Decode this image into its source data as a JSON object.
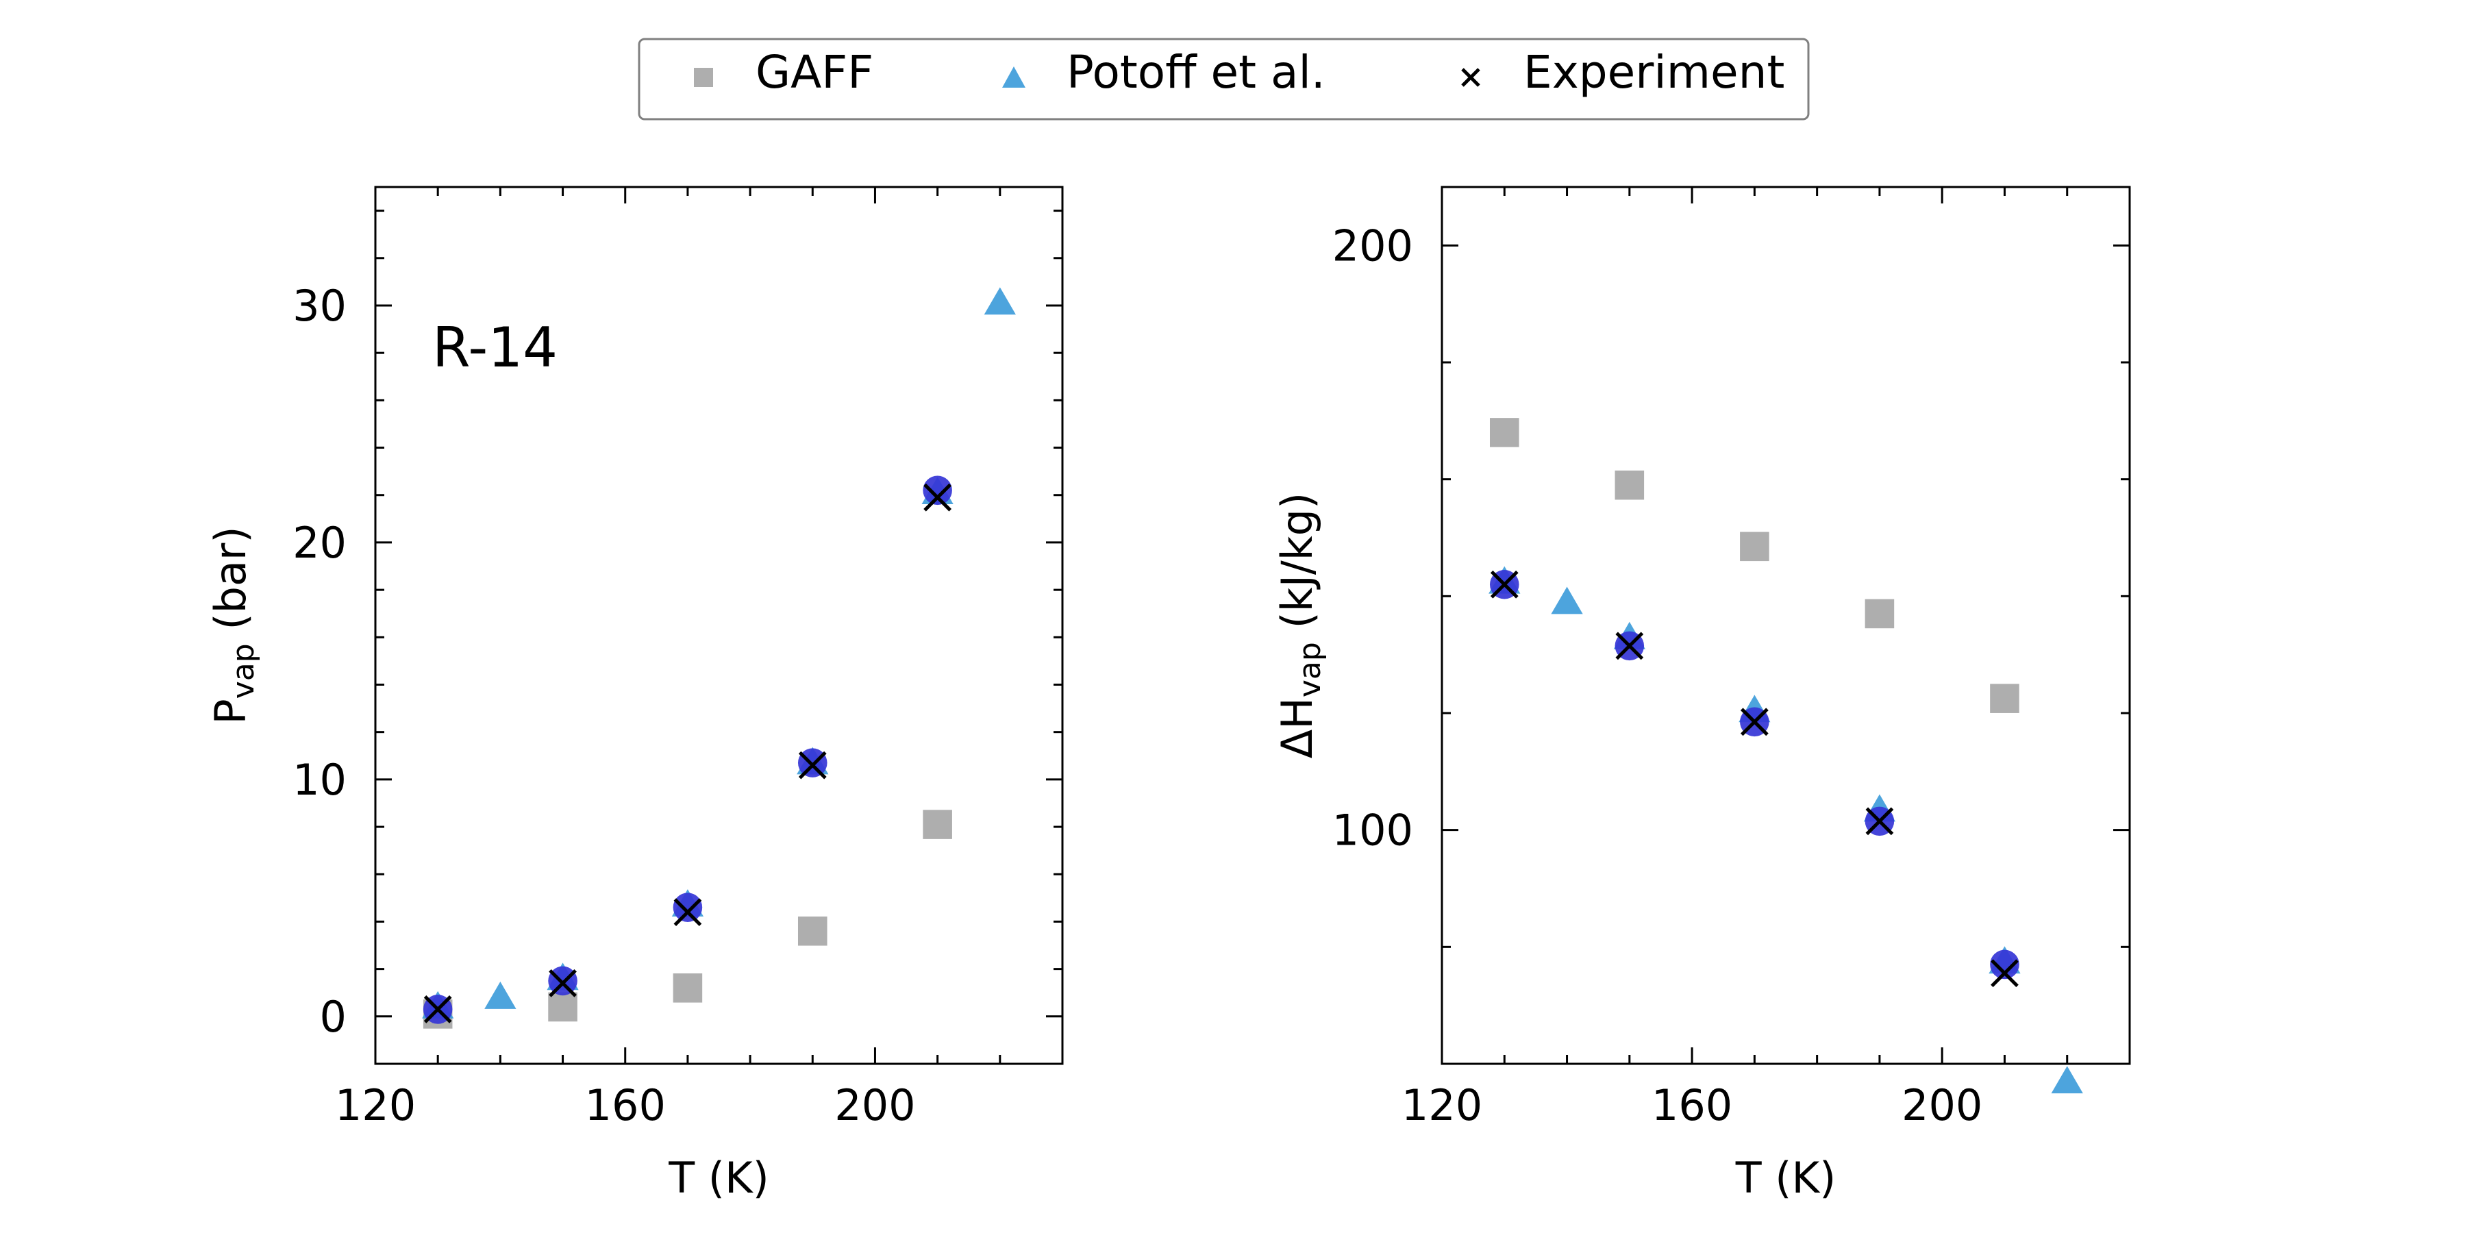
{
  "legend": {
    "items": [
      {
        "label": "GAFF",
        "marker": "square",
        "color": "#a0a0a0"
      },
      {
        "label": "Potoff et al.",
        "marker": "triangle",
        "color": "#3a9ad9"
      },
      {
        "label": "Experiment",
        "marker": "x",
        "color": "#000000"
      }
    ]
  },
  "chart_data": [
    {
      "type": "scatter",
      "annotation": "R-14",
      "xlabel": "T (K)",
      "ylabel_main": "P",
      "ylabel_sub": "vap",
      "ylabel_tail": " (bar)",
      "xlim": [
        120,
        230
      ],
      "ylim": [
        -2,
        35
      ],
      "xticks": [
        120,
        160,
        200
      ],
      "yticks": [
        0,
        10,
        20,
        30
      ],
      "grid": false,
      "series": [
        {
          "name": "GAFF",
          "marker": "square",
          "color": "#a0a0a0",
          "x": [
            130,
            150,
            170,
            190,
            210
          ],
          "y": [
            0.1,
            0.4,
            1.2,
            3.6,
            8.1
          ]
        },
        {
          "name": "Potoff et al.",
          "marker": "triangle",
          "color": "#3a9ad9",
          "x": [
            130,
            140,
            150,
            170,
            190,
            210,
            220
          ],
          "y": [
            0.3,
            0.7,
            1.5,
            4.6,
            10.6,
            22.0,
            30.0
          ]
        },
        {
          "marker": "circle",
          "color": "#3535d6",
          "x": [
            130,
            150,
            170,
            190,
            210
          ],
          "y": [
            0.3,
            1.5,
            4.6,
            10.7,
            22.2
          ]
        },
        {
          "name": "Experiment",
          "marker": "x",
          "color": "#000000",
          "x": [
            130,
            150,
            170,
            190,
            210
          ],
          "y": [
            0.3,
            1.4,
            4.4,
            10.6,
            21.9
          ]
        }
      ]
    },
    {
      "type": "scatter",
      "xlabel": "T (K)",
      "ylabel_main": "ΔH",
      "ylabel_sub": "vap",
      "ylabel_tail": " (kJ/kg)",
      "xlim": [
        120,
        230
      ],
      "ylim": [
        60,
        210
      ],
      "xticks": [
        120,
        160,
        200
      ],
      "yticks": [
        100,
        200
      ],
      "grid": false,
      "series": [
        {
          "name": "GAFF",
          "marker": "square",
          "color": "#a0a0a0",
          "x": [
            130,
            150,
            170,
            190,
            210
          ],
          "y": [
            168,
            159,
            148.5,
            137,
            122.5
          ]
        },
        {
          "name": "Potoff et al.",
          "marker": "triangle",
          "color": "#3a9ad9",
          "x": [
            130,
            140,
            150,
            170,
            190,
            210,
            220
          ],
          "y": [
            142,
            138.5,
            132.5,
            120,
            103,
            77,
            56.5
          ]
        },
        {
          "marker": "circle",
          "color": "#3535d6",
          "x": [
            130,
            150,
            170,
            190,
            210
          ],
          "y": [
            142,
            131.5,
            118.5,
            101.5,
            77
          ]
        },
        {
          "name": "Experiment",
          "marker": "x",
          "color": "#000000",
          "x": [
            130,
            150,
            170,
            190,
            210
          ],
          "y": [
            142,
            131.5,
            118.5,
            101.5,
            75.5
          ]
        }
      ]
    }
  ]
}
